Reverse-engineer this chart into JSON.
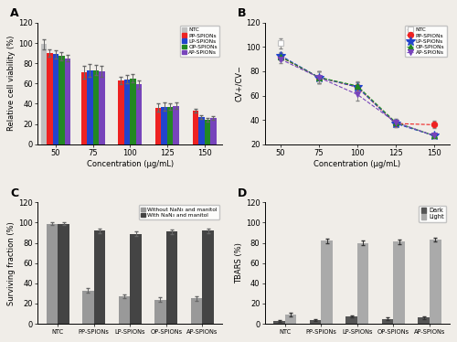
{
  "A": {
    "concentrations": [
      50,
      75,
      100,
      125,
      150
    ],
    "NTC": [
      99,
      null,
      null,
      null,
      null
    ],
    "NTC_err": [
      5,
      null,
      null,
      null,
      null
    ],
    "PP": [
      90,
      71,
      63,
      36,
      33
    ],
    "PP_err": [
      4,
      6,
      4,
      4,
      2
    ],
    "LP": [
      89,
      73,
      64,
      37,
      27
    ],
    "LP_err": [
      4,
      6,
      4,
      4,
      2
    ],
    "OP": [
      87,
      73,
      65,
      37,
      24
    ],
    "OP_err": [
      4,
      5,
      4,
      3,
      2
    ],
    "AP": [
      85,
      72,
      59,
      38,
      26
    ],
    "AP_err": [
      3,
      5,
      4,
      3,
      2
    ],
    "ylabel": "Relative cell viability (%)",
    "xlabel": "Concentration (μg/mL)",
    "ylim": [
      0,
      120
    ],
    "yticks": [
      0,
      20,
      40,
      60,
      80,
      100,
      120
    ],
    "xticks": [
      50,
      75,
      100,
      125,
      150
    ],
    "label": "A"
  },
  "B": {
    "concentrations": [
      50,
      75,
      100,
      125,
      150
    ],
    "NTC": [
      103,
      null,
      null,
      null,
      null
    ],
    "NTC_err": [
      4,
      null,
      null,
      null,
      null
    ],
    "PP": [
      92,
      75,
      67,
      37,
      36
    ],
    "PP_err": [
      3,
      5,
      4,
      3,
      3
    ],
    "LP": [
      93,
      75,
      67,
      37,
      27
    ],
    "LP_err": [
      3,
      5,
      4,
      3,
      2
    ],
    "OP": [
      92,
      75,
      68,
      38,
      27
    ],
    "OP_err": [
      3,
      5,
      4,
      3,
      2
    ],
    "AP": [
      90,
      75,
      61,
      38,
      27
    ],
    "AP_err": [
      3,
      5,
      5,
      3,
      2
    ],
    "ylabel": "CV+/CV−",
    "xlabel": "Concentration (μg/mL)",
    "ylim": [
      20,
      120
    ],
    "yticks": [
      20,
      40,
      60,
      80,
      100,
      120
    ],
    "xticks": [
      50,
      75,
      100,
      125,
      150
    ],
    "xlim": [
      40,
      160
    ],
    "label": "B"
  },
  "C": {
    "categories": [
      "NTC",
      "PP-SPIONs",
      "LP-SPIONs",
      "OP-SPIONs",
      "AP-SPIONs"
    ],
    "without": [
      99,
      33,
      27,
      24,
      25
    ],
    "without_err": [
      1,
      2,
      2,
      2,
      2
    ],
    "with": [
      99,
      92,
      89,
      91,
      92
    ],
    "with_err": [
      1,
      2,
      2,
      2,
      2
    ],
    "ylabel": "Surviving fraction (%)",
    "ylim": [
      0,
      120
    ],
    "yticks": [
      0,
      20,
      40,
      60,
      80,
      100,
      120
    ],
    "label": "C",
    "color_without": "#999999",
    "color_with": "#444444"
  },
  "D": {
    "categories": [
      "NTC",
      "PP-SPIONs",
      "LP-SPIONs",
      "OP-SPIONs",
      "AP-SPIONs"
    ],
    "dark": [
      3,
      4,
      7,
      5,
      6
    ],
    "dark_err": [
      1,
      1,
      1,
      1,
      1
    ],
    "light": [
      9,
      82,
      80,
      81,
      83
    ],
    "light_err": [
      2,
      2,
      2,
      2,
      2
    ],
    "ylabel": "TBARS (%)",
    "ylim": [
      0,
      120
    ],
    "yticks": [
      0,
      20,
      40,
      60,
      80,
      100,
      120
    ],
    "label": "D",
    "color_dark": "#555555",
    "color_light": "#aaaaaa"
  },
  "colors": {
    "NTC": "#c0c0c0",
    "PP": "#ee2222",
    "LP": "#2244cc",
    "OP": "#228822",
    "AP": "#7744bb"
  },
  "bg_color": "#f0ede8"
}
